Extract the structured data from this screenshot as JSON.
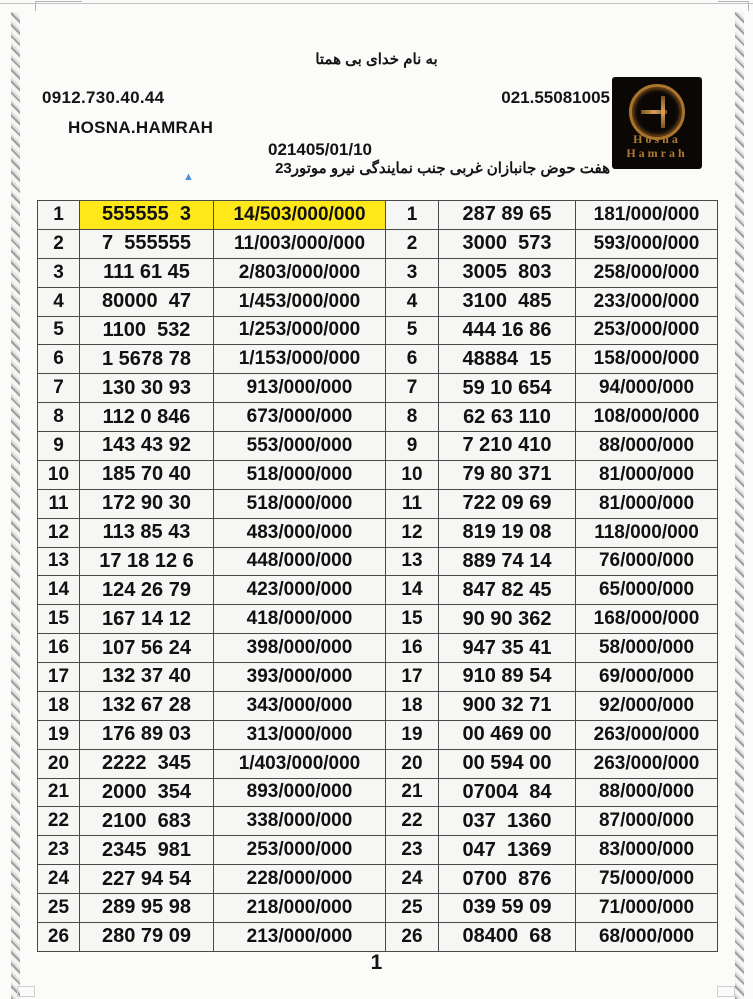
{
  "header": {
    "bismillah": "به نام خدای بی همتا",
    "mobile_number": "0912.730.40.44",
    "office_number": "021.55081005",
    "brand_name": "HOSNA.HAMRAH",
    "date": "021405/01/10",
    "address": "هفت حوض جانبازان غربی جنب نمایندگی نیرو موتور23",
    "marker_icon": "▲"
  },
  "logo": {
    "line1": "Hosna",
    "line2": "Hamrah"
  },
  "colors": {
    "highlight_yellow": "#ffe81a",
    "marker_blue": "#4a90d9",
    "logo_gold": "#b07a35",
    "logo_background": "#0a0705"
  },
  "table": {
    "left_rows": [
      {
        "n": "1",
        "number": "555555  3",
        "price": "14/503/000/000",
        "highlight": true
      },
      {
        "n": "2",
        "number": "7  555555",
        "price": "11/003/000/000",
        "highlight": false
      },
      {
        "n": "3",
        "number": "111 61 45",
        "price": "2/803/000/000",
        "highlight": false
      },
      {
        "n": "4",
        "number": "80000  47",
        "price": "1/453/000/000",
        "highlight": false
      },
      {
        "n": "5",
        "number": "1100  532",
        "price": "1/253/000/000",
        "highlight": false
      },
      {
        "n": "6",
        "number": "1 5678 78",
        "price": "1/153/000/000",
        "highlight": false
      },
      {
        "n": "7",
        "number": "130 30 93",
        "price": "913/000/000",
        "highlight": false
      },
      {
        "n": "8",
        "number": "112 0 846",
        "price": "673/000/000",
        "highlight": false
      },
      {
        "n": "9",
        "number": "143 43 92",
        "price": "553/000/000",
        "highlight": false
      },
      {
        "n": "10",
        "number": "185 70 40",
        "price": "518/000/000",
        "highlight": false
      },
      {
        "n": "11",
        "number": "172 90 30",
        "price": "518/000/000",
        "highlight": false
      },
      {
        "n": "12",
        "number": "113 85 43",
        "price": "483/000/000",
        "highlight": false
      },
      {
        "n": "13",
        "number": "17 18 12 6",
        "price": "448/000/000",
        "highlight": false
      },
      {
        "n": "14",
        "number": "124 26 79",
        "price": "423/000/000",
        "highlight": false
      },
      {
        "n": "15",
        "number": "167 14 12",
        "price": "418/000/000",
        "highlight": false
      },
      {
        "n": "16",
        "number": "107 56 24",
        "price": "398/000/000",
        "highlight": false
      },
      {
        "n": "17",
        "number": "132 37 40",
        "price": "393/000/000",
        "highlight": false
      },
      {
        "n": "18",
        "number": "132 67 28",
        "price": "343/000/000",
        "highlight": false
      },
      {
        "n": "19",
        "number": "176 89 03",
        "price": "313/000/000",
        "highlight": false
      },
      {
        "n": "20",
        "number": "2222  345",
        "price": "1/403/000/000",
        "highlight": false
      },
      {
        "n": "21",
        "number": "2000  354",
        "price": "893/000/000",
        "highlight": false
      },
      {
        "n": "22",
        "number": "2100  683",
        "price": "338/000/000",
        "highlight": false
      },
      {
        "n": "23",
        "number": "2345  981",
        "price": "253/000/000",
        "highlight": false
      },
      {
        "n": "24",
        "number": "227 94 54",
        "price": "228/000/000",
        "highlight": false
      },
      {
        "n": "25",
        "number": "289 95 98",
        "price": "218/000/000",
        "highlight": false
      },
      {
        "n": "26",
        "number": "280 79 09",
        "price": "213/000/000",
        "highlight": false
      }
    ],
    "right_rows": [
      {
        "n": "1",
        "number": "287 89 65",
        "price": "181/000/000"
      },
      {
        "n": "2",
        "number": "3000  573",
        "price": "593/000/000"
      },
      {
        "n": "3",
        "number": "3005  803",
        "price": "258/000/000"
      },
      {
        "n": "4",
        "number": "3100  485",
        "price": "233/000/000"
      },
      {
        "n": "5",
        "number": "444 16 86",
        "price": "253/000/000"
      },
      {
        "n": "6",
        "number": "48884  15",
        "price": "158/000/000"
      },
      {
        "n": "7",
        "number": "59 10 654",
        "price": "94/000/000"
      },
      {
        "n": "8",
        "number": "62 63 110",
        "price": "108/000/000"
      },
      {
        "n": "9",
        "number": "7 210 410",
        "price": "88/000/000"
      },
      {
        "n": "10",
        "number": "79 80 371",
        "price": "81/000/000"
      },
      {
        "n": "11",
        "number": "722 09 69",
        "price": "81/000/000"
      },
      {
        "n": "12",
        "number": "819 19 08",
        "price": "118/000/000"
      },
      {
        "n": "13",
        "number": "889 74 14",
        "price": "76/000/000"
      },
      {
        "n": "14",
        "number": "847 82 45",
        "price": "65/000/000"
      },
      {
        "n": "15",
        "number": "90 90 362",
        "price": "168/000/000"
      },
      {
        "n": "16",
        "number": "947 35 41",
        "price": "58/000/000"
      },
      {
        "n": "17",
        "number": "910 89 54",
        "price": "69/000/000"
      },
      {
        "n": "18",
        "number": "900 32 71",
        "price": "92/000/000"
      },
      {
        "n": "19",
        "number": "00 469 00",
        "price": "263/000/000"
      },
      {
        "n": "20",
        "number": "00 594 00",
        "price": "263/000/000"
      },
      {
        "n": "21",
        "number": "07004  84",
        "price": "88/000/000"
      },
      {
        "n": "22",
        "number": "037  1360",
        "price": "87/000/000"
      },
      {
        "n": "23",
        "number": "047  1369",
        "price": "83/000/000"
      },
      {
        "n": "24",
        "number": "0700  876",
        "price": "75/000/000"
      },
      {
        "n": "25",
        "number": "039 59 09",
        "price": "71/000/000"
      },
      {
        "n": "26",
        "number": "08400  68",
        "price": "68/000/000"
      }
    ]
  },
  "footer": {
    "page_number": "1"
  }
}
